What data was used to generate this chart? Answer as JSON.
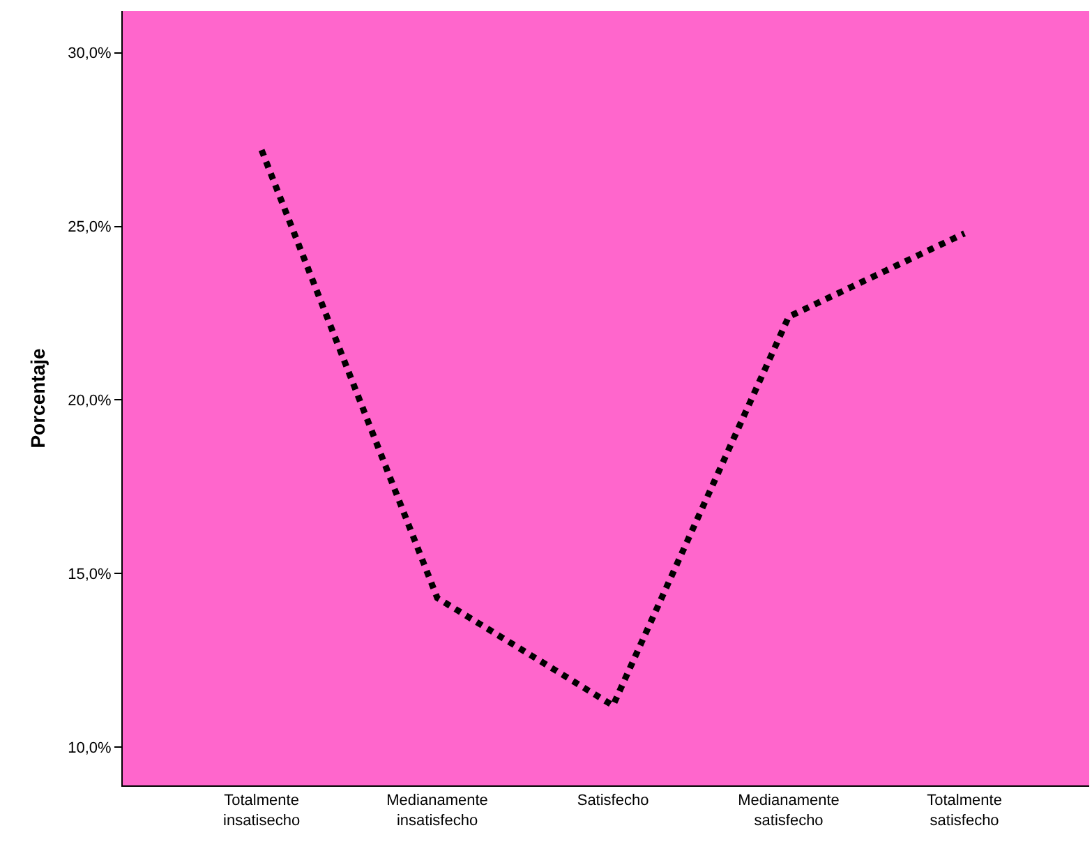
{
  "chart_data": {
    "type": "line",
    "ylabel": "Porcentaje",
    "categories": [
      "Totalmente insatisecho",
      "Medianamente insatisfecho",
      "Satisfecho",
      "Medianamente satisfecho",
      "Totalmente satisfecho"
    ],
    "series": [
      {
        "color": "#000000",
        "values": [
          27.2,
          14.3,
          11.2,
          22.4,
          24.8
        ]
      }
    ],
    "ylim": [
      8.9,
      31.2
    ],
    "yticks": [
      {
        "value": 10,
        "label": "10,0%"
      },
      {
        "value": 15,
        "label": "15,0%"
      },
      {
        "value": 20,
        "label": "20,0%"
      },
      {
        "value": 25,
        "label": "25,0%"
      },
      {
        "value": 30,
        "label": "30,0%"
      }
    ],
    "grid": false,
    "marker": "none",
    "line_style": "dotted"
  }
}
